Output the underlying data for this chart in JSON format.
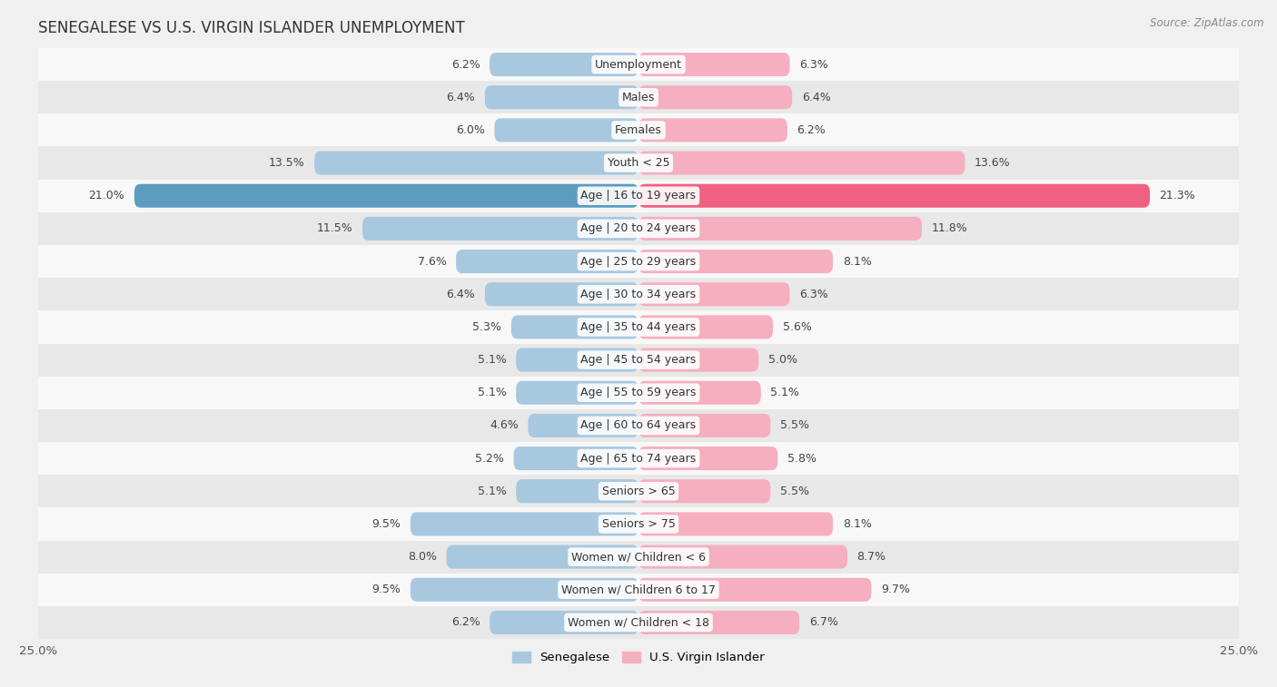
{
  "title": "SENEGALESE VS U.S. VIRGIN ISLANDER UNEMPLOYMENT",
  "source": "Source: ZipAtlas.com",
  "categories": [
    "Unemployment",
    "Males",
    "Females",
    "Youth < 25",
    "Age | 16 to 19 years",
    "Age | 20 to 24 years",
    "Age | 25 to 29 years",
    "Age | 30 to 34 years",
    "Age | 35 to 44 years",
    "Age | 45 to 54 years",
    "Age | 55 to 59 years",
    "Age | 60 to 64 years",
    "Age | 65 to 74 years",
    "Seniors > 65",
    "Seniors > 75",
    "Women w/ Children < 6",
    "Women w/ Children 6 to 17",
    "Women w/ Children < 18"
  ],
  "senegalese": [
    6.2,
    6.4,
    6.0,
    13.5,
    21.0,
    11.5,
    7.6,
    6.4,
    5.3,
    5.1,
    5.1,
    4.6,
    5.2,
    5.1,
    9.5,
    8.0,
    9.5,
    6.2
  ],
  "usvi": [
    6.3,
    6.4,
    6.2,
    13.6,
    21.3,
    11.8,
    8.1,
    6.3,
    5.6,
    5.0,
    5.1,
    5.5,
    5.8,
    5.5,
    8.1,
    8.7,
    9.7,
    6.7
  ],
  "senegalese_color": "#a8c8e0",
  "usvi_color": "#f5afc0",
  "highlight_senegalese_color": "#5b9cbf",
  "highlight_usvi_color": "#f06080",
  "highlight_row": 4,
  "max_val": 25.0,
  "bg_color": "#f0f0f0",
  "row_color_light": "#f8f8f8",
  "row_color_dark": "#e8e8e8",
  "bar_height": 0.72,
  "label_fontsize": 9.0,
  "title_fontsize": 12,
  "source_fontsize": 8.5
}
